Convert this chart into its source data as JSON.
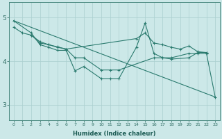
{
  "xlabel": "Humidex (Indice chaleur)",
  "bg_color": "#cce8e8",
  "grid_color": "#aacfcf",
  "line_color": "#2a7a6e",
  "yticks": [
    3,
    4,
    5
  ],
  "ylim": [
    2.65,
    5.35
  ],
  "xlim": [
    -0.5,
    23.5
  ],
  "line_diagonal": {
    "x": [
      0,
      23
    ],
    "y": [
      4.93,
      3.18
    ]
  },
  "line_upper": {
    "x": [
      0,
      1,
      2,
      3,
      4,
      5,
      6,
      14,
      15,
      16,
      17,
      18,
      19,
      20,
      21,
      22
    ],
    "y": [
      4.78,
      4.65,
      4.6,
      4.45,
      4.38,
      4.33,
      4.28,
      4.52,
      4.65,
      4.42,
      4.38,
      4.32,
      4.28,
      4.35,
      4.22,
      4.2
    ]
  },
  "line_wavy": {
    "x": [
      0,
      2,
      3,
      4,
      5,
      6,
      7,
      8,
      10,
      11,
      12,
      14,
      15,
      16,
      17,
      18,
      20,
      21,
      22,
      23
    ],
    "y": [
      4.93,
      4.65,
      4.38,
      4.32,
      4.25,
      4.25,
      3.78,
      3.88,
      3.6,
      3.6,
      3.6,
      4.32,
      4.88,
      4.18,
      4.08,
      4.08,
      4.18,
      4.18,
      4.18,
      3.18
    ]
  },
  "line_mid": {
    "x": [
      2,
      3,
      4,
      5,
      6,
      7,
      8,
      10,
      11,
      12,
      16,
      17,
      18,
      20,
      21,
      22
    ],
    "y": [
      4.6,
      4.42,
      4.38,
      4.32,
      4.28,
      4.08,
      4.08,
      3.8,
      3.8,
      3.8,
      4.08,
      4.08,
      4.05,
      4.08,
      4.2,
      4.2
    ]
  }
}
